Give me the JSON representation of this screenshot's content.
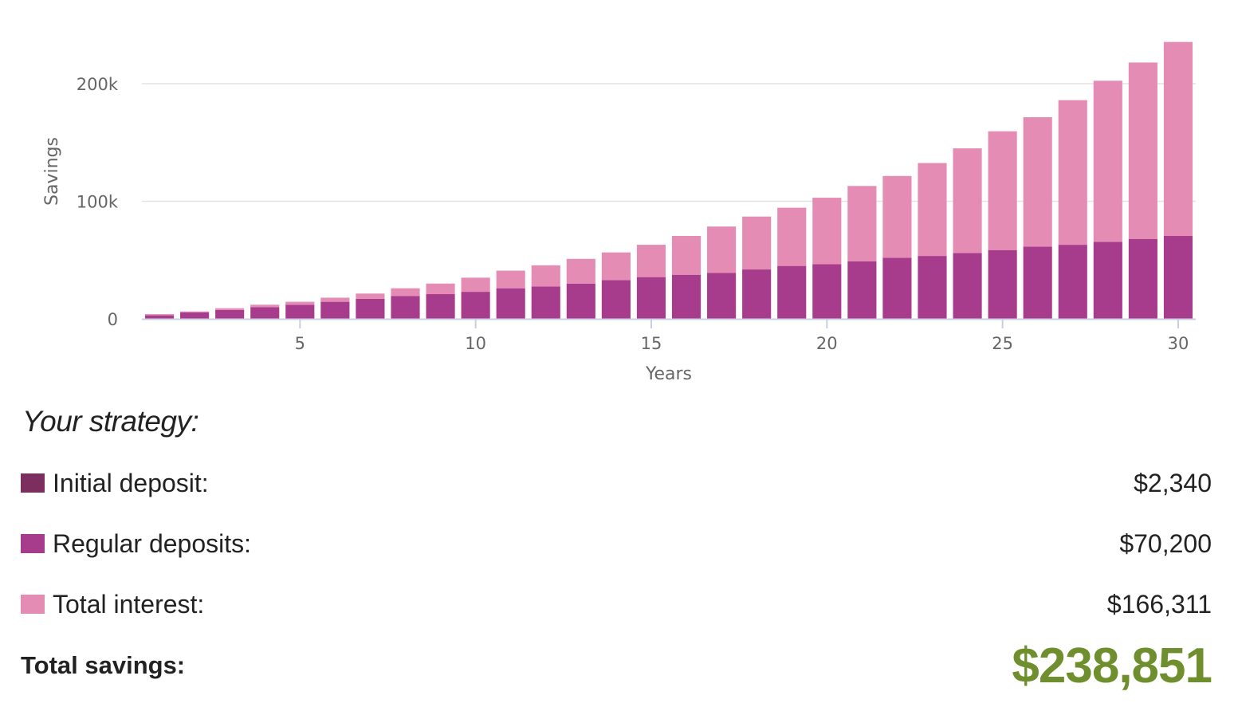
{
  "chart_data": {
    "type": "bar",
    "stacked": true,
    "xlabel": "Years",
    "ylabel": "Savings",
    "ylim": [
      0,
      240000
    ],
    "xlim": [
      0.5,
      30.5
    ],
    "y_ticks": [
      0,
      100000,
      200000
    ],
    "y_tick_labels": [
      "0",
      "100k",
      "200k"
    ],
    "x_ticks": [
      5,
      10,
      15,
      20,
      25,
      30
    ],
    "x_tick_labels": [
      "5",
      "10",
      "15",
      "20",
      "25",
      "30"
    ],
    "grid": "horizontal",
    "x": [
      1,
      2,
      3,
      4,
      5,
      6,
      7,
      8,
      9,
      10,
      11,
      12,
      13,
      14,
      15,
      16,
      17,
      18,
      19,
      20,
      21,
      22,
      23,
      24,
      25,
      26,
      27,
      28,
      29,
      30
    ],
    "series": [
      {
        "color": "#a83c8c",
        "values": [
          3000,
          5500,
          7500,
          10000,
          12000,
          14500,
          17000,
          19500,
          21000,
          23000,
          26000,
          27500,
          30000,
          33000,
          35500,
          37500,
          39000,
          42000,
          45000,
          46500,
          49000,
          52000,
          53500,
          56000,
          58500,
          61500,
          63000,
          65500,
          68000,
          70500
        ]
      },
      {
        "color": "#e58cb4",
        "values": [
          1000,
          800,
          1500,
          2000,
          2500,
          3500,
          4500,
          6500,
          9000,
          12000,
          15000,
          18000,
          21000,
          23500,
          27500,
          33000,
          39500,
          45000,
          49500,
          56500,
          64000,
          69500,
          79000,
          89000,
          101000,
          110000,
          123000,
          137000,
          150000,
          165000
        ]
      }
    ]
  },
  "summary": {
    "title": "Your strategy:",
    "items": [
      {
        "label": "Initial deposit:",
        "value": "$2,340",
        "color": "#7c2f5e"
      },
      {
        "label": "Regular deposits:",
        "value": "$70,200",
        "color": "#a83c8c"
      },
      {
        "label": "Total interest:",
        "value": "$166,311",
        "color": "#e58cb4"
      }
    ],
    "total_label": "Total savings:",
    "total_value": "$238,851",
    "total_color": "#6f8f2e"
  }
}
